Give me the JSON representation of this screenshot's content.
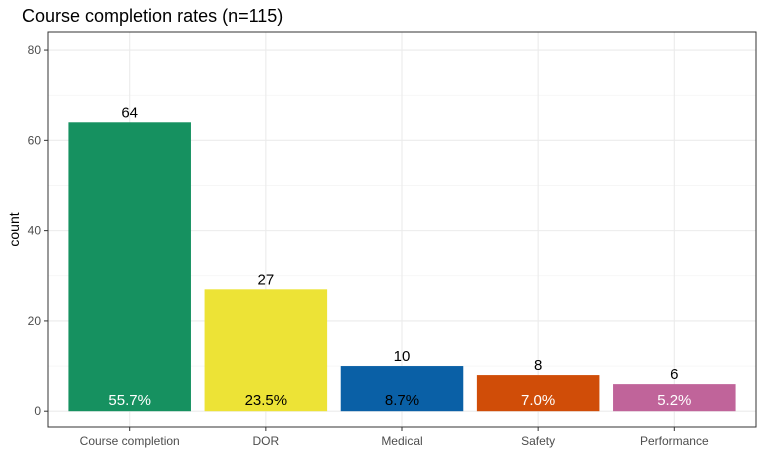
{
  "chart_data": {
    "type": "bar",
    "title": "Course completion rates (n=115)",
    "xlabel": "",
    "ylabel": "count",
    "categories": [
      "Course completion",
      "DOR",
      "Medical",
      "Safety",
      "Performance"
    ],
    "values": [
      64,
      27,
      10,
      8,
      6
    ],
    "percent_labels": [
      "55.7%",
      "23.5%",
      "8.7%",
      "7.0%",
      "5.2%"
    ],
    "count_labels": [
      "64",
      "27",
      "10",
      "8",
      "6"
    ],
    "colors": [
      "#169160",
      "#ede336",
      "#0a60a6",
      "#d04d08",
      "#c0649a"
    ],
    "percent_label_colors": [
      "#ffffff",
      "#000000",
      "#000000",
      "#ffffff",
      "#ffffff"
    ],
    "ylim": [
      -3.5,
      84
    ],
    "yticks": [
      0,
      20,
      40,
      60,
      80
    ],
    "ytick_labels": [
      "0",
      "20",
      "40",
      "60",
      "80"
    ],
    "grid": true,
    "legend": "none"
  }
}
